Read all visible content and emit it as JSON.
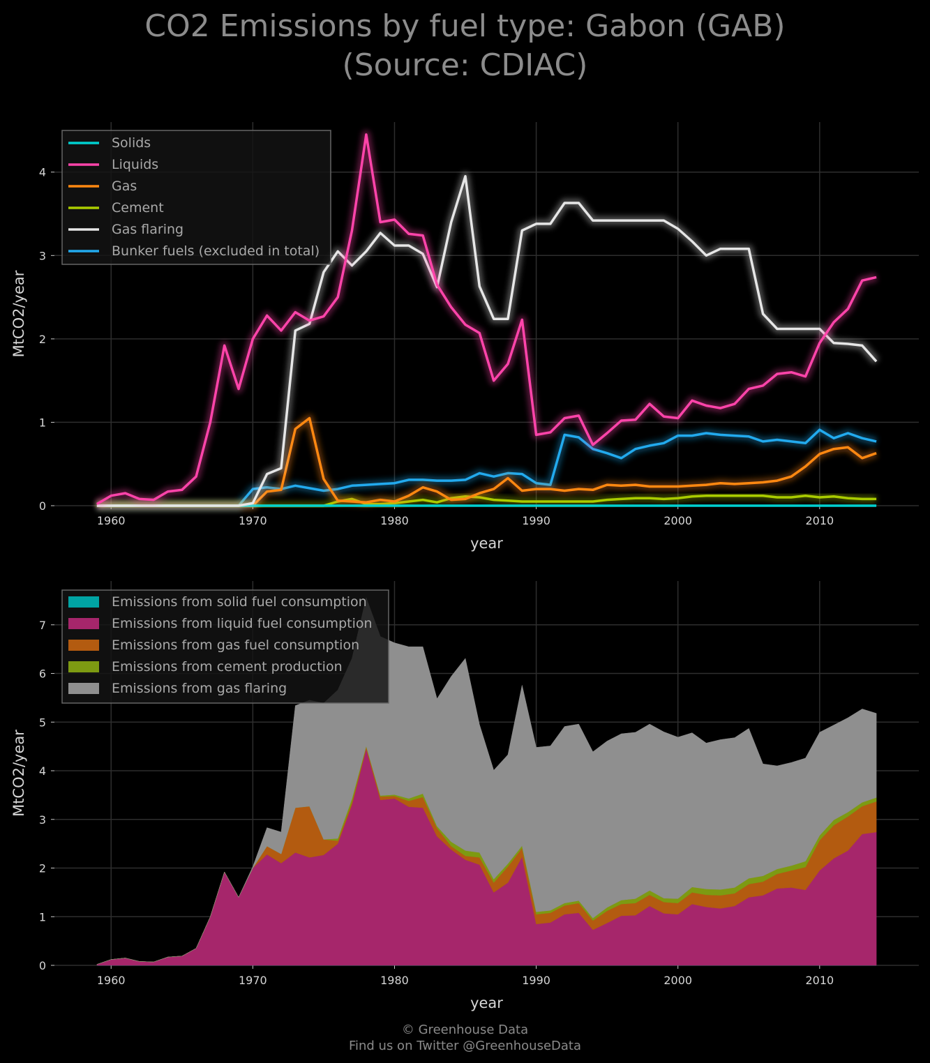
{
  "title": {
    "line1": "CO2 Emissions by fuel type: Gabon (GAB)",
    "line2": "(Source: CDIAC)"
  },
  "footer": {
    "line1": "© Greenhouse Data",
    "line2": "Find us on Twitter @GreenhouseData"
  },
  "chart_data": [
    {
      "type": "line",
      "xlabel": "year",
      "ylabel": "MtCO2/year",
      "xlim": [
        1956,
        2017
      ],
      "ylim": [
        0,
        4.6
      ],
      "xticks": [
        1960,
        1970,
        1980,
        1990,
        2000,
        2010
      ],
      "yticks": [
        0,
        1,
        2,
        3,
        4
      ],
      "grid": true,
      "legend_position": "top-left",
      "x": [
        1959,
        1960,
        1961,
        1962,
        1963,
        1964,
        1965,
        1966,
        1967,
        1968,
        1969,
        1970,
        1971,
        1972,
        1973,
        1974,
        1975,
        1976,
        1977,
        1978,
        1979,
        1980,
        1981,
        1982,
        1983,
        1984,
        1985,
        1986,
        1987,
        1988,
        1989,
        1990,
        1991,
        1992,
        1993,
        1994,
        1995,
        1996,
        1997,
        1998,
        1999,
        2000,
        2001,
        2002,
        2003,
        2004,
        2005,
        2006,
        2007,
        2008,
        2009,
        2010,
        2011,
        2012,
        2013,
        2014
      ],
      "series": [
        {
          "name": "Solids",
          "color": "#00d0d0",
          "values": [
            0,
            0,
            0,
            0,
            0,
            0,
            0,
            0,
            0,
            0,
            0,
            0,
            0,
            0,
            0,
            0,
            0,
            0,
            0,
            0,
            0,
            0,
            0,
            0,
            0,
            0,
            0,
            0,
            0,
            0,
            0,
            0,
            0,
            0,
            0,
            0,
            0,
            0,
            0,
            0,
            0,
            0,
            0,
            0,
            0,
            0,
            0,
            0,
            0,
            0,
            0,
            0,
            0,
            0,
            0,
            0
          ]
        },
        {
          "name": "Liquids",
          "color": "#ff44aa",
          "values": [
            0.02,
            0.12,
            0.15,
            0.08,
            0.07,
            0.17,
            0.19,
            0.35,
            1.0,
            1.92,
            1.4,
            2.0,
            2.28,
            2.1,
            2.32,
            2.22,
            2.27,
            2.5,
            3.3,
            4.45,
            3.4,
            3.43,
            3.26,
            3.24,
            2.65,
            2.38,
            2.17,
            2.07,
            1.5,
            1.7,
            2.23,
            0.85,
            0.88,
            1.05,
            1.08,
            0.73,
            0.87,
            1.02,
            1.03,
            1.22,
            1.07,
            1.05,
            1.26,
            1.2,
            1.17,
            1.22,
            1.4,
            1.44,
            1.58,
            1.6,
            1.55,
            1.95,
            2.2,
            2.36,
            2.7,
            2.74
          ]
        },
        {
          "name": "Gas",
          "color": "#ff8811",
          "values": [
            0,
            0,
            0,
            0,
            0,
            0,
            0,
            0,
            0,
            0,
            0,
            0,
            0.17,
            0.19,
            0.92,
            1.05,
            0.32,
            0.06,
            0.05,
            0.04,
            0.07,
            0.05,
            0.12,
            0.22,
            0.17,
            0.07,
            0.08,
            0.15,
            0.2,
            0.33,
            0.18,
            0.2,
            0.2,
            0.18,
            0.2,
            0.19,
            0.25,
            0.24,
            0.25,
            0.23,
            0.23,
            0.23,
            0.24,
            0.25,
            0.27,
            0.26,
            0.27,
            0.28,
            0.3,
            0.35,
            0.47,
            0.62,
            0.68,
            0.7,
            0.57,
            0.63
          ]
        },
        {
          "name": "Cement",
          "color": "#aacc00",
          "values": [
            0,
            0,
            0,
            0,
            0,
            0,
            0,
            0,
            0,
            0,
            0,
            0,
            0,
            0,
            0,
            0,
            0,
            0.05,
            0.08,
            0.02,
            0.02,
            0.03,
            0.05,
            0.07,
            0.04,
            0.09,
            0.11,
            0.1,
            0.07,
            0.06,
            0.05,
            0.05,
            0.05,
            0.05,
            0.05,
            0.05,
            0.07,
            0.08,
            0.09,
            0.09,
            0.08,
            0.09,
            0.11,
            0.12,
            0.12,
            0.12,
            0.12,
            0.12,
            0.1,
            0.1,
            0.12,
            0.1,
            0.11,
            0.09,
            0.08,
            0.08
          ]
        },
        {
          "name": "Gas flaring",
          "color": "#e6e6e6",
          "values": [
            0,
            0,
            0,
            0,
            0,
            0,
            0,
            0,
            0,
            0,
            0,
            0.03,
            0.38,
            0.45,
            2.1,
            2.18,
            2.8,
            3.05,
            2.88,
            3.05,
            3.27,
            3.12,
            3.12,
            3.02,
            2.62,
            3.4,
            3.95,
            2.63,
            2.24,
            2.24,
            3.3,
            3.38,
            3.38,
            3.63,
            3.63,
            3.42,
            3.42,
            3.42,
            3.42,
            3.42,
            3.42,
            3.32,
            3.17,
            3.0,
            3.08,
            3.08,
            3.08,
            2.3,
            2.12,
            2.12,
            2.12,
            2.12,
            1.95,
            1.94,
            1.92,
            1.73
          ]
        },
        {
          "name": "Bunker fuels (excluded in total)",
          "color": "#22aaee",
          "values": [
            0,
            0,
            0,
            0,
            0,
            0,
            0,
            0,
            0,
            0,
            0,
            0.2,
            0.22,
            0.2,
            0.24,
            0.21,
            0.18,
            0.2,
            0.24,
            0.25,
            0.26,
            0.27,
            0.31,
            0.31,
            0.3,
            0.3,
            0.31,
            0.39,
            0.35,
            0.39,
            0.38,
            0.27,
            0.25,
            0.85,
            0.82,
            0.68,
            0.63,
            0.57,
            0.68,
            0.72,
            0.75,
            0.84,
            0.84,
            0.87,
            0.85,
            0.84,
            0.83,
            0.77,
            0.79,
            0.77,
            0.75,
            0.91,
            0.81,
            0.87,
            0.81,
            0.77
          ]
        }
      ]
    },
    {
      "type": "area",
      "stacked": true,
      "xlabel": "year",
      "ylabel": "MtCO2/year",
      "xlim": [
        1956,
        2017
      ],
      "ylim": [
        0,
        7.9
      ],
      "xticks": [
        1960,
        1970,
        1980,
        1990,
        2000,
        2010
      ],
      "yticks": [
        0,
        1,
        2,
        3,
        4,
        5,
        6,
        7
      ],
      "grid": true,
      "legend_position": "top-left",
      "series": [
        {
          "name": "Emissions from solid fuel consumption",
          "color": "#00a3a3",
          "source": "Solids"
        },
        {
          "name": "Emissions from liquid fuel consumption",
          "color": "#a6266b",
          "source": "Liquids"
        },
        {
          "name": "Emissions from gas fuel consumption",
          "color": "#b35b10",
          "source": "Gas"
        },
        {
          "name": "Emissions from cement production",
          "color": "#7d9a12",
          "source": "Cement"
        },
        {
          "name": "Emissions from gas flaring",
          "color": "#8f8f8f",
          "source": "Gas flaring"
        }
      ]
    }
  ]
}
